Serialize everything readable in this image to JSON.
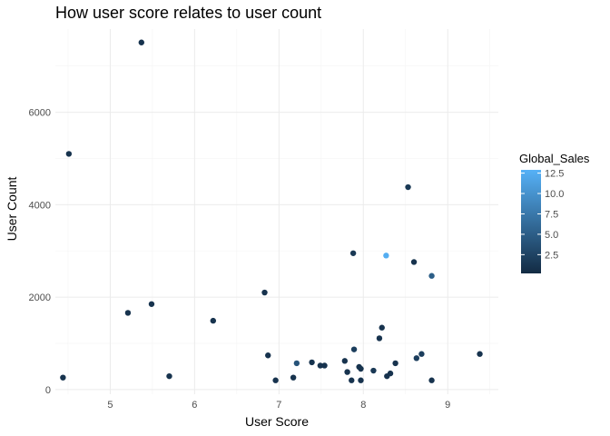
{
  "chart_data": {
    "type": "scatter",
    "title": "How user score relates to user count",
    "xlabel": "User Score",
    "ylabel": "User Count",
    "xlim": [
      4.35,
      9.6
    ],
    "ylim": [
      -100,
      7800
    ],
    "xticks": [
      5,
      6,
      7,
      8,
      9
    ],
    "yticks": [
      0,
      2000,
      4000,
      6000
    ],
    "grid": true,
    "legend": {
      "title": "Global_Sales",
      "placement": "right",
      "min": 0.2,
      "max": 12.9,
      "ticks": [
        2.5,
        5.0,
        7.5,
        10.0,
        12.5
      ],
      "tick_labels": [
        "2.5",
        "5.0",
        "7.5",
        "10.0",
        "12.5"
      ],
      "low_color": "#132B43",
      "high_color": "#56B1F7"
    },
    "points": [
      {
        "x": 5.37,
        "y": 7510,
        "sales": 1.0
      },
      {
        "x": 4.51,
        "y": 5100,
        "sales": 1.0
      },
      {
        "x": 8.53,
        "y": 4380,
        "sales": 1.5
      },
      {
        "x": 7.88,
        "y": 2950,
        "sales": 1.5
      },
      {
        "x": 8.27,
        "y": 2900,
        "sales": 12.5
      },
      {
        "x": 8.6,
        "y": 2760,
        "sales": 1.0
      },
      {
        "x": 8.81,
        "y": 2460,
        "sales": 5.0
      },
      {
        "x": 6.83,
        "y": 2100,
        "sales": 1.0
      },
      {
        "x": 5.49,
        "y": 1850,
        "sales": 1.0
      },
      {
        "x": 5.21,
        "y": 1660,
        "sales": 1.0
      },
      {
        "x": 6.22,
        "y": 1490,
        "sales": 1.0
      },
      {
        "x": 8.22,
        "y": 1340,
        "sales": 1.0
      },
      {
        "x": 8.19,
        "y": 1110,
        "sales": 1.0
      },
      {
        "x": 7.89,
        "y": 870,
        "sales": 2.0
      },
      {
        "x": 8.69,
        "y": 770,
        "sales": 2.0
      },
      {
        "x": 9.38,
        "y": 770,
        "sales": 1.0
      },
      {
        "x": 6.87,
        "y": 740,
        "sales": 1.0
      },
      {
        "x": 8.63,
        "y": 680,
        "sales": 2.0
      },
      {
        "x": 7.78,
        "y": 620,
        "sales": 1.0
      },
      {
        "x": 7.39,
        "y": 590,
        "sales": 1.0
      },
      {
        "x": 7.21,
        "y": 570,
        "sales": 4.0
      },
      {
        "x": 8.38,
        "y": 570,
        "sales": 1.0
      },
      {
        "x": 7.49,
        "y": 520,
        "sales": 1.0
      },
      {
        "x": 7.54,
        "y": 520,
        "sales": 1.0
      },
      {
        "x": 7.95,
        "y": 490,
        "sales": 1.0
      },
      {
        "x": 7.97,
        "y": 450,
        "sales": 1.0
      },
      {
        "x": 8.12,
        "y": 410,
        "sales": 1.5
      },
      {
        "x": 7.81,
        "y": 380,
        "sales": 1.0
      },
      {
        "x": 8.32,
        "y": 350,
        "sales": 1.0
      },
      {
        "x": 8.28,
        "y": 290,
        "sales": 1.0
      },
      {
        "x": 5.7,
        "y": 290,
        "sales": 1.0
      },
      {
        "x": 7.17,
        "y": 260,
        "sales": 1.0
      },
      {
        "x": 4.44,
        "y": 260,
        "sales": 1.0
      },
      {
        "x": 6.96,
        "y": 200,
        "sales": 1.0
      },
      {
        "x": 7.86,
        "y": 200,
        "sales": 1.0
      },
      {
        "x": 7.97,
        "y": 200,
        "sales": 1.0
      },
      {
        "x": 8.81,
        "y": 200,
        "sales": 1.0
      }
    ]
  }
}
